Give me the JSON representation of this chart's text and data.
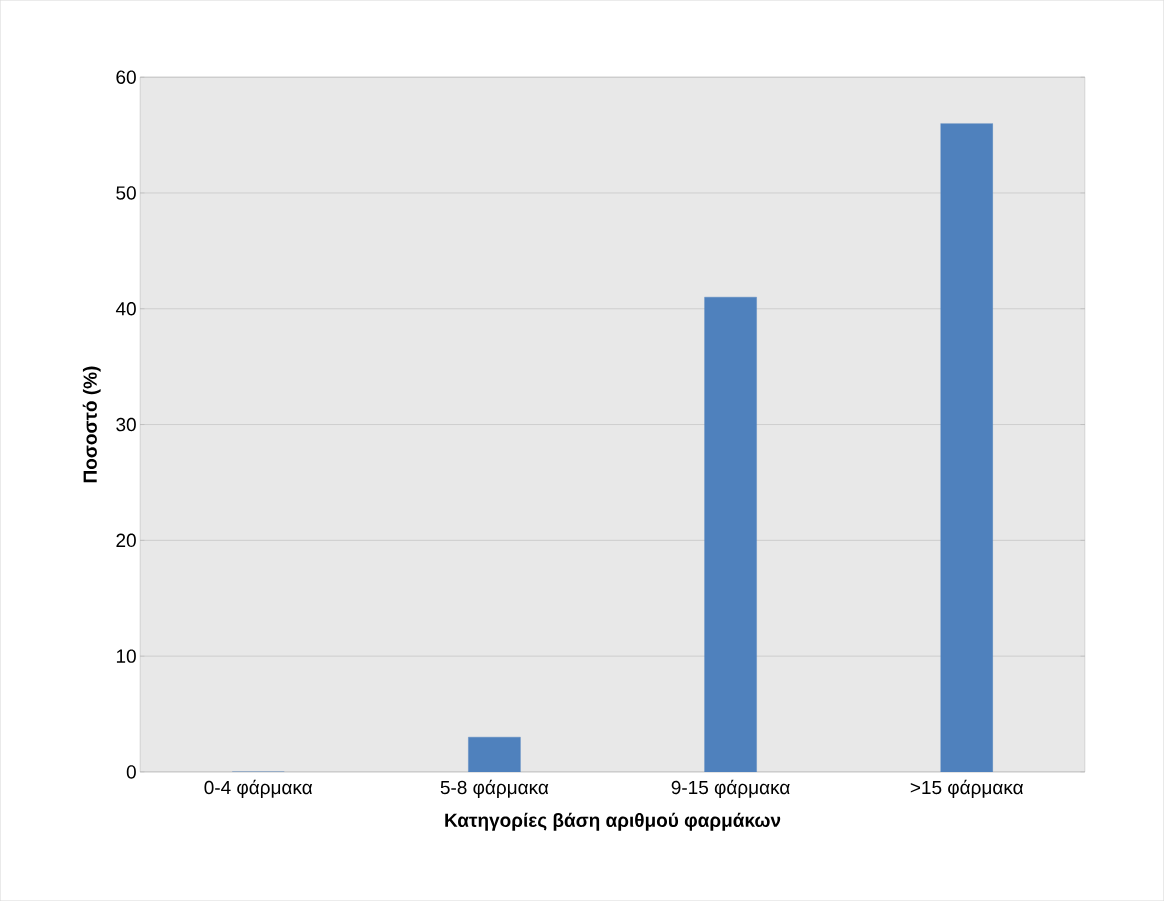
{
  "chart_data": {
    "type": "bar",
    "xlabel": "Κατηγορίες βάση αριθμού φαρμάκων",
    "ylabel": "Ποσοστό (%)",
    "categories": [
      "0-4 φάρμακα",
      "5-8 φάρμακα",
      "9-15 φάρμακα",
      ">15 φάρμακα"
    ],
    "values": [
      0,
      3,
      41,
      56
    ],
    "color": "#4f81bd",
    "ylim": [
      0,
      60
    ],
    "yticks": [
      0,
      10,
      20,
      30,
      40,
      50,
      60
    ],
    "grid": "y"
  }
}
